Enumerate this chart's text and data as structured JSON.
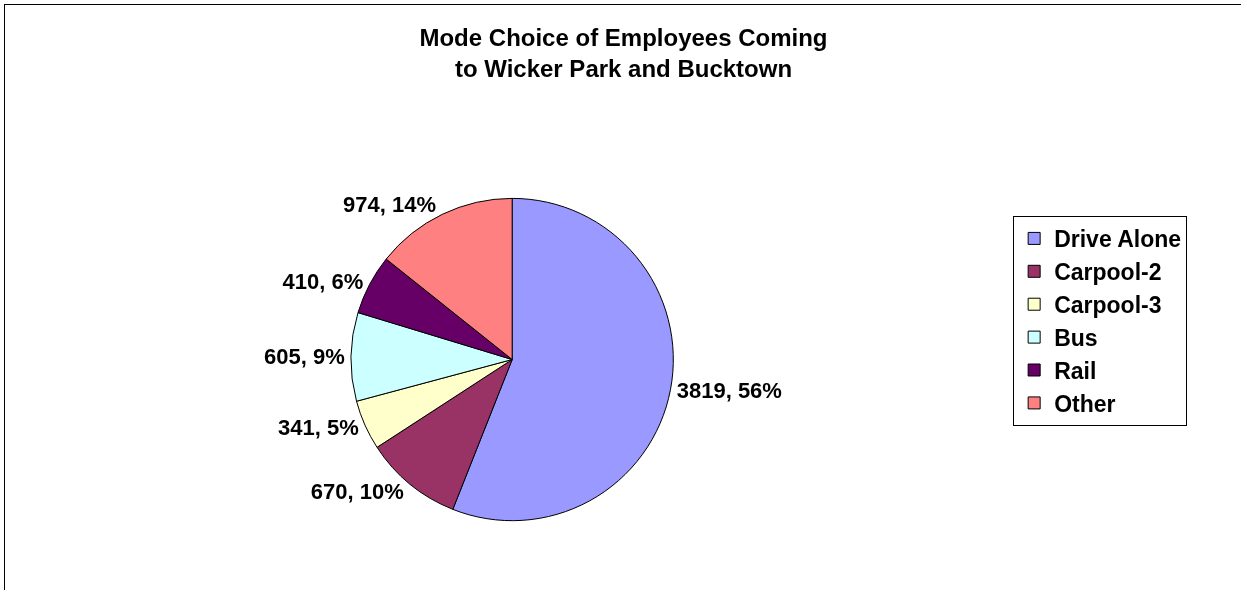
{
  "chart_data": {
    "type": "pie",
    "title": "Mode Choice of Employees Coming\nto Wicker Park and Bucktown",
    "categories": [
      "Drive Alone",
      "Carpool-2",
      "Carpool-3",
      "Bus",
      "Rail",
      "Other"
    ],
    "values": [
      3819,
      670,
      341,
      605,
      410,
      974
    ],
    "colors": [
      "#9999ff",
      "#993366",
      "#ffffcc",
      "#ccffff",
      "#660066",
      "#ff8080"
    ],
    "value_labels": [
      "3819, 56%",
      "670, 10%",
      "341, 5%",
      "605, 9%",
      "410, 6%",
      "974, 14%"
    ],
    "legend": "right"
  }
}
